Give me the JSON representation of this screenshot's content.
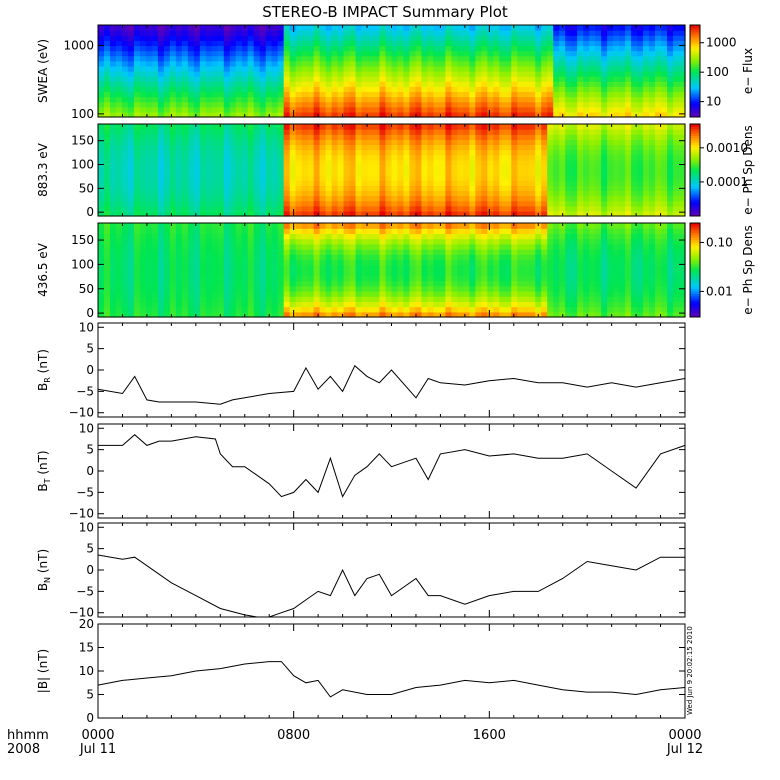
{
  "title": "STEREO-B IMPACT Summary Plot",
  "timestamp": "Wed Jun  9 20:02:15 2010",
  "x_axis": {
    "row1_label": "hhmm",
    "row2_label": "2008",
    "ticks": [
      {
        "t": 0,
        "label": "0000",
        "sublabel": "Jul 11"
      },
      {
        "t": 8,
        "label": "0800",
        "sublabel": ""
      },
      {
        "t": 16,
        "label": "1600",
        "sublabel": ""
      },
      {
        "t": 24,
        "label": "0000",
        "sublabel": "Jul 12"
      }
    ],
    "range_hours": [
      0,
      24
    ]
  },
  "chart_data": [
    {
      "type": "heatmap",
      "id": "swea",
      "ylabel": "SWEA (eV)",
      "yscale": "log",
      "ylim": [
        90,
        2000
      ],
      "yticks": [
        {
          "v": 100,
          "label": "100"
        },
        {
          "v": 1000,
          "label": "1000"
        }
      ],
      "colorbar": {
        "label": "e− Flux",
        "scale": "log",
        "range": [
          3,
          4000
        ],
        "ticks": [
          {
            "v": 10,
            "label": "10"
          },
          {
            "v": 100,
            "label": "100"
          },
          {
            "v": 1000,
            "label": "1000"
          }
        ]
      },
      "segments": [
        {
          "t0": 0,
          "t1": 7.6,
          "low_flux": 300,
          "high_flux": 4
        },
        {
          "t0": 7.6,
          "t1": 18.5,
          "low_flux": 3000,
          "high_flux": 30
        },
        {
          "t0": 18.5,
          "t1": 24,
          "low_flux": 800,
          "high_flux": 8
        }
      ]
    },
    {
      "type": "heatmap",
      "id": "pad883",
      "ylabel": "883.3 eV",
      "ylim": [
        -8,
        185
      ],
      "yticks": [
        {
          "v": 0,
          "label": "0"
        },
        {
          "v": 50,
          "label": "50"
        },
        {
          "v": 100,
          "label": "100"
        },
        {
          "v": 150,
          "label": "150"
        }
      ],
      "colorbar": {
        "label": "e− Ph Sp Dens",
        "scale": "log",
        "range": [
          1e-05,
          0.005
        ],
        "ticks": [
          {
            "v": 0.0001,
            "label": "0.0001"
          },
          {
            "v": 0.001,
            "label": "0.0010"
          }
        ]
      },
      "segments": [
        {
          "t0": 0,
          "t1": 7.6,
          "base": 0.00012,
          "field_aligned": 0.0002
        },
        {
          "t0": 7.6,
          "t1": 18.3,
          "base": 0.0012,
          "field_aligned": 0.004
        },
        {
          "t0": 18.3,
          "t1": 24,
          "base": 0.0003,
          "field_aligned": 0.0008
        }
      ]
    },
    {
      "type": "heatmap",
      "id": "pad436",
      "ylabel": "436.5 eV",
      "ylim": [
        -8,
        185
      ],
      "yticks": [
        {
          "v": 0,
          "label": "0"
        },
        {
          "v": 50,
          "label": "50"
        },
        {
          "v": 100,
          "label": "100"
        },
        {
          "v": 150,
          "label": "150"
        }
      ],
      "colorbar": {
        "label": "e− Ph Sp Dens",
        "scale": "log",
        "range": [
          0.003,
          0.25
        ],
        "ticks": [
          {
            "v": 0.01,
            "label": "0.01"
          },
          {
            "v": 0.1,
            "label": "0.10"
          }
        ]
      },
      "segments": [
        {
          "t0": 0,
          "t1": 7.6,
          "base": 0.025,
          "field_aligned": 0.03
        },
        {
          "t0": 7.6,
          "t1": 18.3,
          "base": 0.03,
          "field_aligned": 0.15
        },
        {
          "t0": 18.3,
          "t1": 24,
          "base": 0.025,
          "field_aligned": 0.04
        }
      ]
    },
    {
      "type": "line",
      "id": "br",
      "ylabel": "B",
      "ylabel_sub": "R",
      "ylabel_unit": " (nT)",
      "ylim": [
        -11,
        11
      ],
      "yticks": [
        {
          "v": -10,
          "label": "−10"
        },
        {
          "v": -5,
          "label": "−5"
        },
        {
          "v": 0,
          "label": "0"
        },
        {
          "v": 5,
          "label": "5"
        },
        {
          "v": 10,
          "label": "10"
        }
      ],
      "x": [
        0,
        1,
        1.5,
        2,
        2.5,
        3,
        4,
        5,
        5.5,
        6,
        7,
        8,
        8.5,
        9,
        9.5,
        10,
        10.5,
        11,
        11.5,
        12,
        13,
        13.5,
        14,
        15,
        16,
        17,
        18,
        19,
        20,
        21,
        22,
        23,
        24
      ],
      "values": [
        -4.5,
        -5.5,
        -1.5,
        -7,
        -7.5,
        -7.5,
        -7.5,
        -8,
        -7,
        -6.5,
        -5.5,
        -5,
        0.5,
        -4.5,
        -1.5,
        -5,
        1,
        -1.5,
        -3,
        0,
        -6.5,
        -2,
        -3,
        -3.5,
        -2.5,
        -2,
        -3,
        -3,
        -4,
        -3,
        -4,
        -3,
        -2
      ]
    },
    {
      "type": "line",
      "id": "bt",
      "ylabel": "B",
      "ylabel_sub": "T",
      "ylabel_unit": " (nT)",
      "ylim": [
        -11,
        11
      ],
      "yticks": [
        {
          "v": -10,
          "label": "−10"
        },
        {
          "v": -5,
          "label": "−5"
        },
        {
          "v": 0,
          "label": "0"
        },
        {
          "v": 5,
          "label": "5"
        },
        {
          "v": 10,
          "label": "10"
        }
      ],
      "x": [
        0,
        1,
        1.5,
        2,
        2.5,
        3,
        4,
        4.8,
        5,
        5.5,
        6,
        7,
        7.5,
        8,
        8.5,
        9,
        9.5,
        10,
        10.5,
        11,
        11.5,
        12,
        13,
        13.5,
        14,
        15,
        16,
        17,
        18,
        19,
        20,
        21,
        22,
        23,
        24
      ],
      "values": [
        6,
        6,
        8.5,
        6,
        7,
        7,
        8,
        7.5,
        4,
        1,
        1,
        -3,
        -6,
        -5,
        -2,
        -5,
        3,
        -6,
        -1,
        1,
        4,
        1,
        3,
        -2,
        4,
        5,
        3.5,
        4,
        3,
        3,
        4,
        0,
        -4,
        4,
        6
      ]
    },
    {
      "type": "line",
      "id": "bn",
      "ylabel": "B",
      "ylabel_sub": "N",
      "ylabel_unit": " (nT)",
      "ylim": [
        -11,
        11
      ],
      "yticks": [
        {
          "v": -10,
          "label": "−10"
        },
        {
          "v": -5,
          "label": "−5"
        },
        {
          "v": 0,
          "label": "0"
        },
        {
          "v": 5,
          "label": "5"
        },
        {
          "v": 10,
          "label": "10"
        }
      ],
      "x": [
        0,
        1,
        1.5,
        2,
        3,
        4,
        5,
        6,
        6.5,
        7,
        7.5,
        8,
        8.5,
        9,
        9.5,
        10,
        10.5,
        11,
        11.5,
        12,
        12.5,
        13,
        13.5,
        14,
        15,
        16,
        17,
        18,
        19,
        20,
        21,
        22,
        23,
        24
      ],
      "values": [
        3.5,
        2.5,
        3,
        1,
        -3,
        -6,
        -9,
        -10.5,
        -11,
        -11,
        -10,
        -9,
        -7,
        -5,
        -6,
        0,
        -6,
        -2,
        -1,
        -6,
        -4,
        -2,
        -6,
        -6,
        -8,
        -6,
        -5,
        -5,
        -2,
        2,
        1,
        0,
        3,
        3
      ]
    },
    {
      "type": "line",
      "id": "bmag",
      "ylabel": "|B| (nT)",
      "ylim": [
        0,
        20
      ],
      "yticks": [
        {
          "v": 0,
          "label": "0"
        },
        {
          "v": 5,
          "label": "5"
        },
        {
          "v": 10,
          "label": "10"
        },
        {
          "v": 15,
          "label": "15"
        },
        {
          "v": 20,
          "label": "20"
        }
      ],
      "x": [
        0,
        1,
        2,
        3,
        4,
        5,
        6,
        7,
        7.5,
        8,
        8.5,
        9,
        9.5,
        10,
        11,
        12,
        13,
        14,
        15,
        16,
        17,
        18,
        19,
        20,
        21,
        22,
        23,
        24
      ],
      "values": [
        7,
        8,
        8.5,
        9,
        10,
        10.5,
        11.5,
        12,
        12,
        9,
        7.5,
        8,
        4.5,
        6,
        5,
        5,
        6.5,
        7,
        8,
        7.5,
        8,
        7,
        6,
        5.5,
        5.5,
        5,
        6,
        6.5
      ]
    }
  ]
}
